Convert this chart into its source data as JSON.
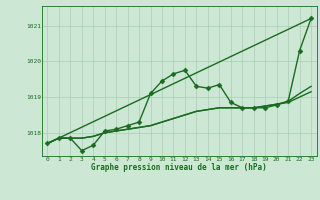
{
  "title": "Graphe pression niveau de la mer (hPa)",
  "background_color": "#cce8d4",
  "grid_color": "#aaccb4",
  "line_color": "#1a6b20",
  "x_ticks": [
    0,
    1,
    2,
    3,
    4,
    5,
    6,
    7,
    8,
    9,
    10,
    11,
    12,
    13,
    14,
    15,
    16,
    17,
    18,
    19,
    20,
    21,
    22,
    23
  ],
  "y_ticks": [
    1018,
    1019,
    1020,
    1021
  ],
  "ylim": [
    1017.35,
    1021.55
  ],
  "xlim": [
    -0.5,
    23.5
  ],
  "series": [
    {
      "x": [
        0,
        23
      ],
      "y": [
        1017.7,
        1021.2
      ],
      "marker": null,
      "lw": 1.0
    },
    {
      "x": [
        0,
        1,
        2,
        3,
        4,
        5,
        6,
        7,
        8,
        9,
        10,
        11,
        12,
        13,
        14,
        15,
        16,
        17,
        18,
        19,
        20,
        21,
        22,
        23
      ],
      "y": [
        1017.7,
        1017.85,
        1017.85,
        1017.85,
        1017.9,
        1018.0,
        1018.05,
        1018.1,
        1018.15,
        1018.2,
        1018.3,
        1018.4,
        1018.5,
        1018.6,
        1018.65,
        1018.7,
        1018.7,
        1018.7,
        1018.7,
        1018.75,
        1018.8,
        1018.85,
        1019.0,
        1019.15
      ],
      "marker": null,
      "lw": 1.0
    },
    {
      "x": [
        0,
        1,
        2,
        3,
        4,
        5,
        6,
        7,
        8,
        9,
        10,
        11,
        12,
        13,
        14,
        15,
        16,
        17,
        18,
        19,
        20,
        21,
        22,
        23
      ],
      "y": [
        1017.7,
        1017.85,
        1017.85,
        1017.85,
        1017.9,
        1018.0,
        1018.05,
        1018.1,
        1018.15,
        1018.2,
        1018.3,
        1018.4,
        1018.5,
        1018.6,
        1018.65,
        1018.7,
        1018.7,
        1018.7,
        1018.7,
        1018.75,
        1018.8,
        1018.88,
        1019.1,
        1019.3
      ],
      "marker": null,
      "lw": 1.0
    },
    {
      "x": [
        0,
        1,
        2,
        3,
        4,
        5,
        6,
        7,
        8,
        9,
        10,
        11,
        12,
        13,
        14,
        15,
        16,
        17,
        18,
        19,
        20,
        21,
        22,
        23
      ],
      "y": [
        1017.7,
        1017.85,
        1017.85,
        1017.5,
        1017.65,
        1018.05,
        1018.1,
        1018.2,
        1018.3,
        1019.1,
        1019.45,
        1019.65,
        1019.75,
        1019.3,
        1019.25,
        1019.35,
        1018.85,
        1018.7,
        1018.7,
        1018.7,
        1018.78,
        1018.88,
        1020.3,
        1021.2
      ],
      "marker": "D",
      "lw": 1.0
    }
  ]
}
